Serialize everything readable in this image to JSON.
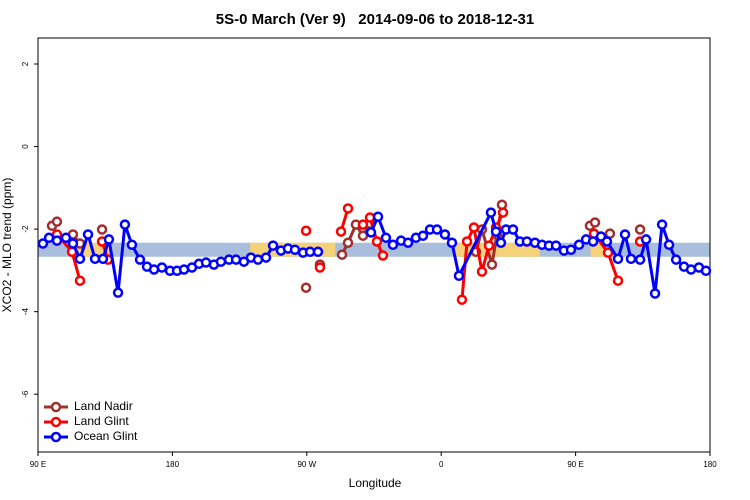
{
  "chart_data": {
    "type": "line",
    "title": "5S-0 March (Ver 9)   2014-09-06 to 2018-12-31",
    "xlabel": "Longitude",
    "ylabel": "XCO2 - MLO trend (ppm)",
    "xlim": [
      90,
      540
    ],
    "ylim": [
      -7.4,
      2.63
    ],
    "xticks": [
      {
        "value": 90,
        "label": "90 E"
      },
      180,
      {
        "value": 270,
        "label": "90 W"
      },
      0,
      {
        "value": 450,
        "label": "90 E"
      },
      {
        "value": 540,
        "label": "180"
      }
    ],
    "yticks": [
      2,
      0,
      -2,
      -4,
      -6
    ],
    "band": {
      "ylim": [
        -2.67,
        -2.33
      ],
      "color": "#a8bedc",
      "highlight_color": "#f5d27a",
      "highlight_x": [
        [
          111,
          138
        ],
        [
          232,
          289
        ],
        [
          369,
          426
        ],
        [
          460,
          470
        ]
      ]
    },
    "legend": "bottom-left",
    "series": [
      {
        "name": "Land Nadir",
        "color": "#a0302e",
        "x": [
          99.4,
          102.7,
          null,
          113.4,
          118.1,
          null,
          132.9,
          null,
          269.5,
          null,
          278.8,
          null,
          293.6,
          297.6,
          302.9,
          307.6,
          312.3,
          null,
          383.3,
          387.3,
          394.0,
          397.3,
          400.7,
          null,
          459.6,
          463.0,
          null,
          473.0,
          null,
          493.2
        ],
        "values": [
          -1.92,
          -1.82,
          null,
          -2.13,
          -2.35,
          null,
          -2.01,
          null,
          -3.42,
          null,
          -2.86,
          null,
          -2.62,
          -2.33,
          -1.89,
          -2.16,
          -1.87,
          null,
          -2.55,
          -2.01,
          -2.86,
          -2.13,
          -1.41,
          null,
          -1.92,
          -1.84,
          null,
          -2.11,
          null,
          -2.01
        ]
      },
      {
        "name": "Land Glint",
        "color": "#ff0000",
        "x": [
          102.7,
          112.8,
          118.1,
          null,
          132.9,
          136.9,
          null,
          269.5,
          null,
          278.8,
          null,
          292.9,
          297.6,
          null,
          307.6,
          312.3,
          317.0,
          321.0,
          null,
          373.9,
          377.3,
          381.9,
          387.3,
          392.0,
          396.7,
          401.4,
          null,
          462.3,
          471.7,
          478.4,
          null,
          493.2
        ],
        "values": [
          -2.13,
          -2.55,
          -3.25,
          null,
          -2.3,
          -2.74,
          null,
          -2.04,
          null,
          -2.93,
          null,
          -2.06,
          -1.5,
          null,
          -1.89,
          -1.72,
          -2.3,
          -2.64,
          null,
          -3.71,
          -2.3,
          -1.96,
          -3.03,
          -2.4,
          -1.96,
          -1.6,
          null,
          -2.11,
          -2.57,
          -3.25,
          null,
          -2.3
        ]
      },
      {
        "name": "Ocean Glint",
        "color": "#0000ff",
        "x": [
          93.3,
          97.4,
          102.7,
          108.7,
          113.4,
          118.1,
          123.5,
          128.2,
          133.5,
          137.5,
          143.6,
          148.2,
          152.9,
          158.3,
          163.0,
          167.7,
          173.0,
          178.4,
          183.1,
          187.8,
          193.1,
          197.8,
          202.5,
          207.8,
          212.5,
          217.9,
          222.6,
          227.9,
          232.6,
          237.3,
          242.7,
          247.4,
          252.7,
          257.4,
          262.1,
          267.5,
          272.2,
          277.5,
          null,
          313.0,
          317.7,
          323.0,
          327.7,
          333.1,
          337.8,
          343.1,
          347.8,
          352.5,
          357.2,
          362.5,
          367.2,
          371.9,
          393.3,
          396.7,
          400.0,
          403.4,
          408.1,
          412.7,
          417.4,
          422.8,
          427.5,
          432.2,
          436.9,
          442.2,
          446.9,
          452.3,
          457.0,
          461.7,
          467.0,
          471.0,
          478.4,
          483.1,
          487.1,
          493.2,
          497.2,
          503.2,
          507.9,
          512.6,
          517.3,
          522.6,
          527.3,
          532.6,
          537.3
        ],
        "values": [
          -2.35,
          -2.21,
          -2.28,
          -2.21,
          -2.35,
          -2.72,
          -2.13,
          -2.72,
          -2.72,
          -2.25,
          -3.54,
          -1.89,
          -2.38,
          -2.74,
          -2.91,
          -2.98,
          -2.93,
          -3.01,
          -3.01,
          -2.98,
          -2.93,
          -2.84,
          -2.81,
          -2.86,
          -2.79,
          -2.74,
          -2.74,
          -2.79,
          -2.69,
          -2.74,
          -2.69,
          -2.4,
          -2.52,
          -2.47,
          -2.5,
          -2.57,
          -2.55,
          -2.55,
          null,
          -2.08,
          -1.7,
          -2.21,
          -2.38,
          -2.28,
          -2.33,
          -2.21,
          -2.16,
          -2.01,
          -2.01,
          -2.13,
          -2.33,
          -3.13,
          -1.6,
          -2.06,
          -2.33,
          -2.01,
          -2.01,
          -2.3,
          -2.3,
          -2.33,
          -2.38,
          -2.4,
          -2.4,
          -2.52,
          -2.5,
          -2.38,
          -2.25,
          -2.3,
          -2.18,
          -2.3,
          -2.72,
          -2.13,
          -2.72,
          -2.74,
          -2.25,
          -3.56,
          -1.89,
          -2.38,
          -2.74,
          -2.91,
          -2.98,
          -2.93,
          -3.01
        ]
      }
    ]
  }
}
